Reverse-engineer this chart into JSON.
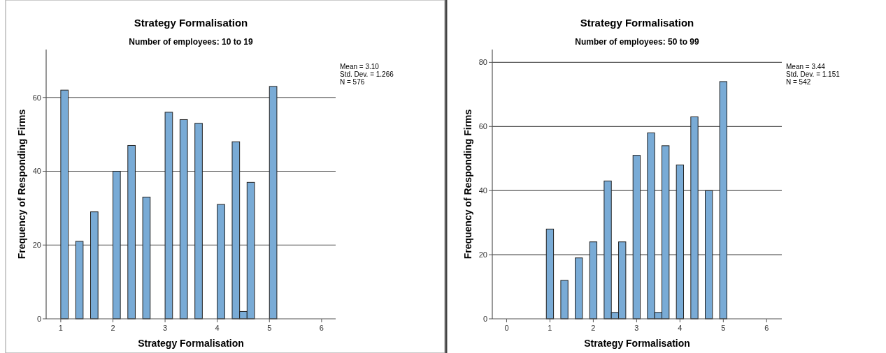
{
  "chart_data": [
    {
      "type": "histogram",
      "title": "Strategy Formalisation",
      "subtitle": "Number of employees: 10 to 19",
      "xlabel": "Strategy Formalisation",
      "ylabel": "Frequency of Responding Firms",
      "annotations": [
        "Mean = 3.10",
        "Std. Dev. = 1.266",
        "N = 576"
      ],
      "color": "#79abd6",
      "bins": [
        1,
        1.1429,
        1.2857,
        1.4286,
        1.5714,
        1.7143,
        1.8571,
        2,
        2.1429,
        2.2857,
        2.4286,
        2.5714,
        2.7143,
        2.8571,
        3,
        3.1429,
        3.2857,
        3.4286,
        3.5714,
        3.7143,
        3.8571,
        4,
        4.1429,
        4.2857,
        4.4286,
        4.5714,
        4.7143,
        4.8571,
        5,
        5.1429
      ],
      "values": [
        62,
        0,
        21,
        0,
        29,
        0,
        0,
        40,
        0,
        47,
        0,
        33,
        0,
        0,
        56,
        0,
        54,
        0,
        53,
        0,
        0,
        31,
        0,
        48,
        2,
        37,
        0,
        0,
        63
      ],
      "xlim": [
        0.72,
        6.27
      ],
      "xticks": [
        1,
        2,
        3,
        4,
        5,
        6
      ],
      "ylim": [
        0,
        73
      ],
      "yticks": [
        0,
        20,
        40,
        60
      ],
      "grid": "y"
    },
    {
      "type": "histogram",
      "title": "Strategy Formalisation",
      "subtitle": "Number of employees: 50 to 99",
      "xlabel": "Strategy Formalisation",
      "ylabel": "Frequency of Responding Firms",
      "annotations": [
        "Mean = 3.44",
        "Std. Dev. = 1.151",
        "N = 542"
      ],
      "color": "#79abd6",
      "bins": [
        0.9167,
        1.0833,
        1.25,
        1.4167,
        1.5833,
        1.75,
        1.9167,
        2.0833,
        2.25,
        2.4167,
        2.5833,
        2.75,
        2.9167,
        3.0833,
        3.25,
        3.4167,
        3.5833,
        3.75,
        3.9167,
        4.0833,
        4.25,
        4.4167,
        4.5833,
        4.75,
        4.9167,
        5.0833
      ],
      "values": [
        28,
        0,
        12,
        0,
        19,
        0,
        24,
        0,
        43,
        2,
        24,
        0,
        51,
        0,
        58,
        2,
        54,
        0,
        48,
        0,
        63,
        0,
        40,
        0,
        74
      ],
      "xlim": [
        -0.33,
        6.35
      ],
      "xticks": [
        0,
        1,
        2,
        3,
        4,
        5,
        6
      ],
      "ylim": [
        0,
        84
      ],
      "yticks": [
        0,
        20,
        40,
        60,
        80
      ],
      "grid": "y"
    }
  ]
}
